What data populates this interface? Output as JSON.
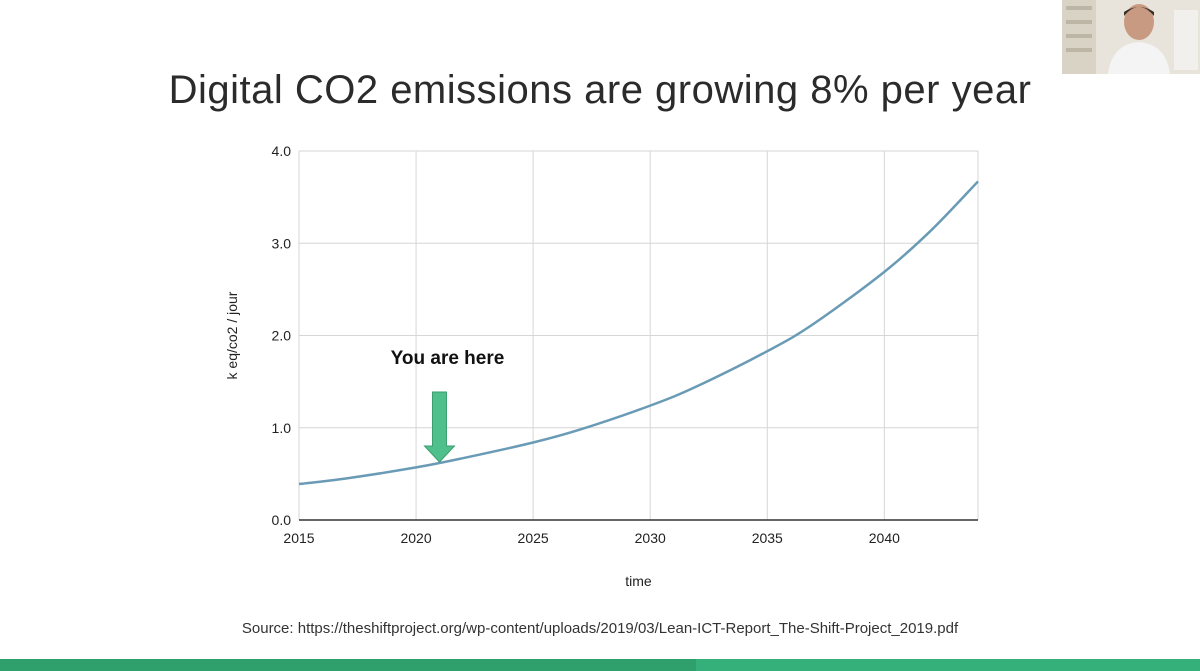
{
  "slide": {
    "title": "Digital CO2 emissions are growing 8% per year",
    "source": "Source: https://theshiftproject.org/wp-content/uploads/2019/03/Lean-ICT-Report_The-Shift-Project_2019.pdf"
  },
  "chart_data": {
    "type": "line",
    "title": "Digital CO2 emissions are growing 8% per year",
    "xlabel": "time",
    "ylabel": "k eq/co2 / jour",
    "xlim": [
      2015,
      2044
    ],
    "ylim": [
      0,
      4
    ],
    "x_ticks": [
      2015,
      2020,
      2025,
      2030,
      2035,
      2040
    ],
    "y_ticks": [
      0,
      1,
      2,
      3,
      4
    ],
    "x_tick_labels": [
      "2015",
      "2020",
      "2025",
      "2030",
      "2035",
      "2040"
    ],
    "y_tick_labels": [
      "0.0",
      "1.0",
      "2.0",
      "3.0",
      "4.0"
    ],
    "grid": true,
    "series": [
      {
        "name": "Digital CO2 emissions",
        "color": "#6a9bb6",
        "x": [
          2015,
          2017,
          2020,
          2022,
          2025,
          2027,
          2030,
          2032,
          2035,
          2037,
          2040,
          2042,
          2044
        ],
        "values": [
          0.39,
          0.45,
          0.57,
          0.67,
          0.84,
          0.98,
          1.24,
          1.45,
          1.83,
          2.13,
          2.69,
          3.14,
          3.67
        ]
      }
    ],
    "annotations": [
      {
        "text": "You are here",
        "x": 2021,
        "arrow_color": "#4fbf8b"
      }
    ]
  },
  "ui": {
    "webcam_icon": "presenter-webcam",
    "progress_color": "#2f9f6c",
    "progress": 0.58
  }
}
